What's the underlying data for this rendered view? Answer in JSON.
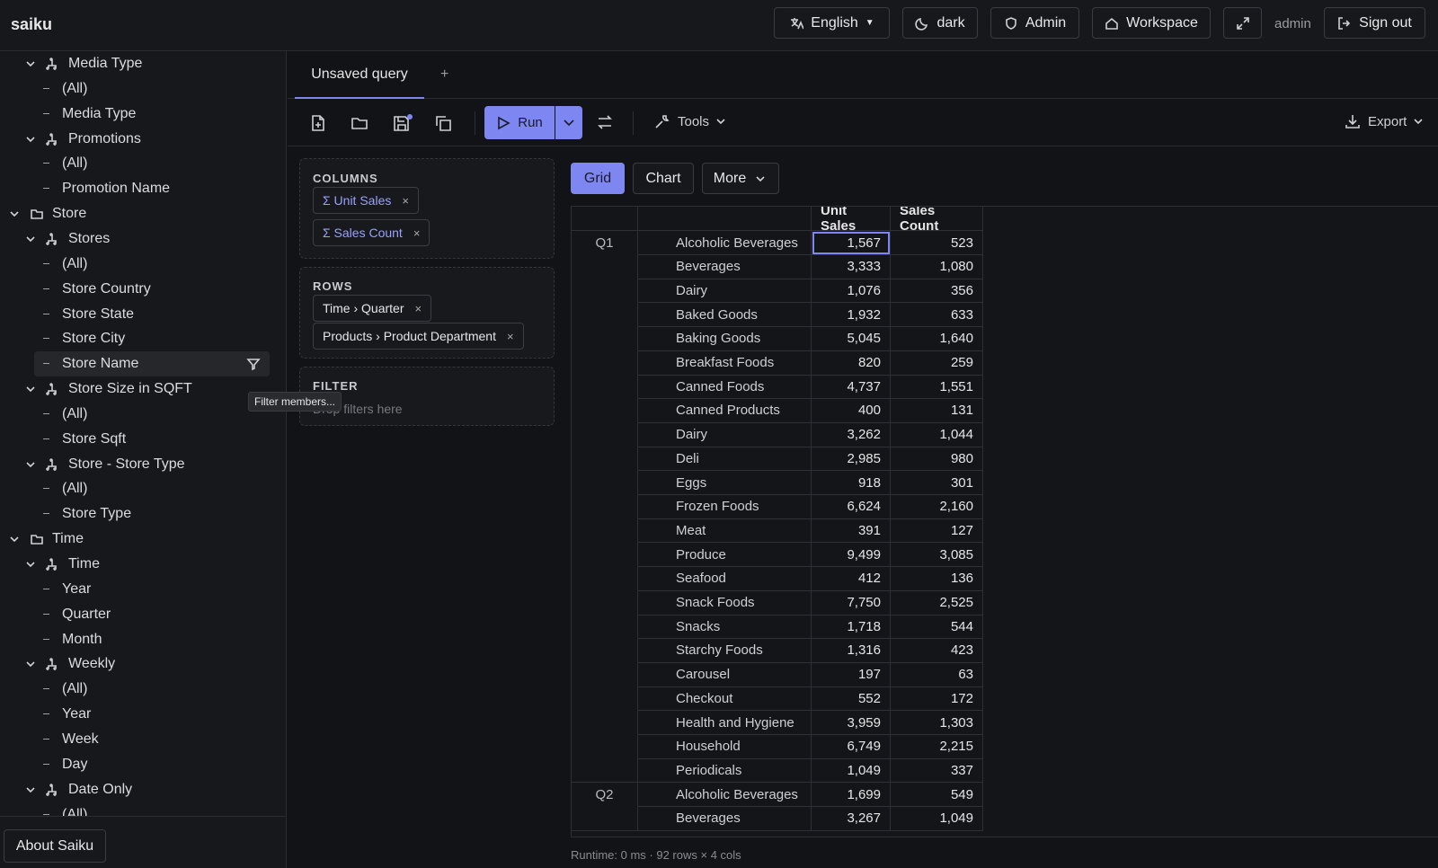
{
  "header": {
    "brand": "saiku",
    "language": "English",
    "theme": "dark",
    "admin": "Admin",
    "workspace": "Workspace",
    "user": "admin",
    "sign_out": "Sign out"
  },
  "sidebar": {
    "items": [
      {
        "label": "Media Type",
        "level": 1,
        "kind": "hierarchy"
      },
      {
        "label": "(All)",
        "level": 2,
        "kind": "level"
      },
      {
        "label": "Media Type",
        "level": 2,
        "kind": "level"
      },
      {
        "label": "Promotions",
        "level": 1,
        "kind": "hierarchy"
      },
      {
        "label": "(All)",
        "level": 2,
        "kind": "level"
      },
      {
        "label": "Promotion Name",
        "level": 2,
        "kind": "level"
      },
      {
        "label": "Store",
        "level": 0,
        "kind": "folder"
      },
      {
        "label": "Stores",
        "level": 1,
        "kind": "hierarchy"
      },
      {
        "label": "(All)",
        "level": 2,
        "kind": "level"
      },
      {
        "label": "Store Country",
        "level": 2,
        "kind": "level"
      },
      {
        "label": "Store State",
        "level": 2,
        "kind": "level"
      },
      {
        "label": "Store City",
        "level": 2,
        "kind": "level"
      },
      {
        "label": "Store Name",
        "level": 2,
        "kind": "level",
        "selected": true
      },
      {
        "label": "Store Size in SQFT",
        "level": 1,
        "kind": "hierarchy"
      },
      {
        "label": "(All)",
        "level": 2,
        "kind": "level"
      },
      {
        "label": "Store Sqft",
        "level": 2,
        "kind": "level"
      },
      {
        "label": "Store - Store Type",
        "level": 1,
        "kind": "hierarchy"
      },
      {
        "label": "(All)",
        "level": 2,
        "kind": "level"
      },
      {
        "label": "Store Type",
        "level": 2,
        "kind": "level"
      },
      {
        "label": "Time",
        "level": 0,
        "kind": "folder"
      },
      {
        "label": "Time",
        "level": 1,
        "kind": "hierarchy"
      },
      {
        "label": "Year",
        "level": 2,
        "kind": "level"
      },
      {
        "label": "Quarter",
        "level": 2,
        "kind": "level"
      },
      {
        "label": "Month",
        "level": 2,
        "kind": "level"
      },
      {
        "label": "Weekly",
        "level": 1,
        "kind": "hierarchy"
      },
      {
        "label": "(All)",
        "level": 2,
        "kind": "level"
      },
      {
        "label": "Year",
        "level": 2,
        "kind": "level"
      },
      {
        "label": "Week",
        "level": 2,
        "kind": "level"
      },
      {
        "label": "Day",
        "level": 2,
        "kind": "level"
      },
      {
        "label": "Date Only",
        "level": 1,
        "kind": "hierarchy"
      },
      {
        "label": "(All)",
        "level": 2,
        "kind": "level"
      }
    ],
    "tooltip": "Filter members...",
    "about": "About Saiku"
  },
  "query": {
    "tab": "Unsaved query",
    "add_tab": "+",
    "run": "Run",
    "tools": "Tools",
    "export": "Export",
    "columns": {
      "title": "COLUMNS",
      "items": [
        "Σ Unit Sales",
        "Σ Sales Count"
      ]
    },
    "rows": {
      "title": "ROWS",
      "items": [
        "Time › Quarter",
        "Products › Product Department"
      ]
    },
    "filter": {
      "title": "FILTER",
      "placeholder": "Drop filters here"
    },
    "views": [
      "Grid",
      "Chart",
      "More"
    ],
    "table": {
      "headers": [
        "Unit Sales",
        "Sales Count"
      ],
      "groups": [
        {
          "label": "Q1",
          "rows": [
            [
              "Alcoholic Beverages",
              "1,567",
              "523"
            ],
            [
              "Beverages",
              "3,333",
              "1,080"
            ],
            [
              "Dairy",
              "1,076",
              "356"
            ],
            [
              "Baked Goods",
              "1,932",
              "633"
            ],
            [
              "Baking Goods",
              "5,045",
              "1,640"
            ],
            [
              "Breakfast Foods",
              "820",
              "259"
            ],
            [
              "Canned Foods",
              "4,737",
              "1,551"
            ],
            [
              "Canned Products",
              "400",
              "131"
            ],
            [
              "Dairy",
              "3,262",
              "1,044"
            ],
            [
              "Deli",
              "2,985",
              "980"
            ],
            [
              "Eggs",
              "918",
              "301"
            ],
            [
              "Frozen Foods",
              "6,624",
              "2,160"
            ],
            [
              "Meat",
              "391",
              "127"
            ],
            [
              "Produce",
              "9,499",
              "3,085"
            ],
            [
              "Seafood",
              "412",
              "136"
            ],
            [
              "Snack Foods",
              "7,750",
              "2,525"
            ],
            [
              "Snacks",
              "1,718",
              "544"
            ],
            [
              "Starchy Foods",
              "1,316",
              "423"
            ],
            [
              "Carousel",
              "197",
              "63"
            ],
            [
              "Checkout",
              "552",
              "172"
            ],
            [
              "Health and Hygiene",
              "3,959",
              "1,303"
            ],
            [
              "Household",
              "6,749",
              "2,215"
            ],
            [
              "Periodicals",
              "1,049",
              "337"
            ]
          ]
        },
        {
          "label": "Q2",
          "rows": [
            [
              "Alcoholic Beverages",
              "1,699",
              "549"
            ],
            [
              "Beverages",
              "3,267",
              "1,049"
            ]
          ]
        }
      ]
    },
    "status": "Runtime: 0 ms · 92 rows × 4 cols"
  }
}
